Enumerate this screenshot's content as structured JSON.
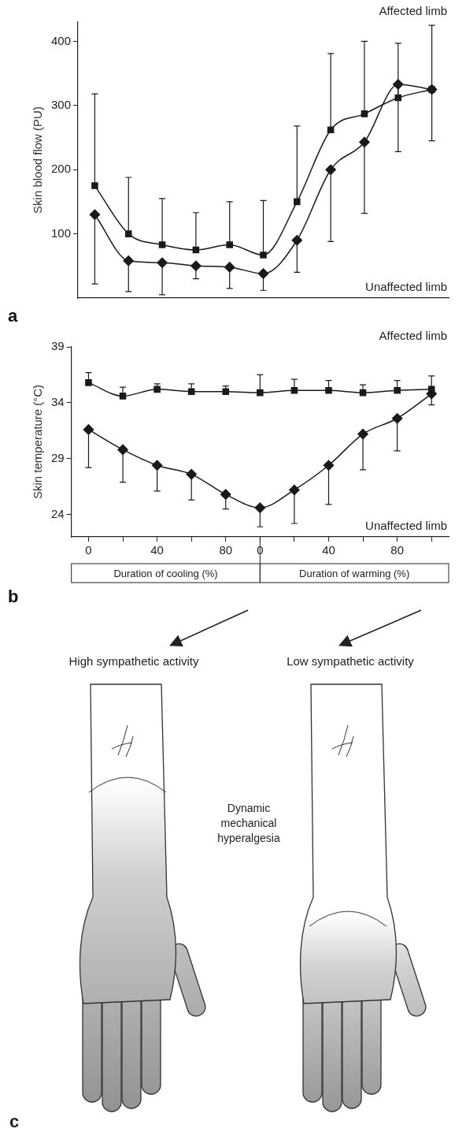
{
  "chart_data": [
    {
      "type": "line",
      "panel": "a",
      "ylabel": "Skin blood flow (PU)",
      "categories": [
        null,
        null,
        null,
        null,
        null,
        null,
        null,
        null,
        null,
        null,
        null
      ],
      "series": [
        {
          "name": "Affected limb",
          "color": "#1a1a1a",
          "marker": "square",
          "line_style": "solid",
          "values": [
            175,
            100,
            83,
            75,
            83,
            67,
            150,
            262,
            287,
            312,
            325
          ],
          "error_upper": [
            318,
            188,
            155,
            133,
            150,
            152,
            268,
            381,
            400,
            397,
            425
          ]
        },
        {
          "name": "Unaffected limb",
          "color": "#1a1a1a",
          "marker": "diamond",
          "line_style": "solid",
          "values": [
            130,
            58,
            55,
            50,
            48,
            38,
            90,
            200,
            243,
            333,
            325
          ],
          "error_lower": [
            22,
            10,
            5,
            30,
            15,
            12,
            40,
            88,
            132,
            228,
            245
          ]
        }
      ],
      "ylim": [
        0,
        430
      ],
      "yticks": [
        100,
        200,
        300,
        400
      ],
      "grid": false,
      "tick_labels": "y"
    },
    {
      "type": "line",
      "panel": "b",
      "ylabel": "Skin temperature (°C)",
      "xlabels": [
        "Duration of cooling (%)",
        "Duration of warming (%)"
      ],
      "categories": [
        "0",
        null,
        "40",
        null,
        "80",
        "0",
        null,
        "40",
        null,
        "80",
        null
      ],
      "series": [
        {
          "name": "Affected limb",
          "color": "#1a1a1a",
          "marker": "square",
          "line_style": "solid",
          "values": [
            35.8,
            34.6,
            35.2,
            35.0,
            35.0,
            34.9,
            35.1,
            35.1,
            34.9,
            35.1,
            35.2
          ],
          "error_upper": [
            36.7,
            35.4,
            35.7,
            35.7,
            35.5,
            36.5,
            36.1,
            36.0,
            35.6,
            36.0,
            36.4
          ]
        },
        {
          "name": "Unaffected limb",
          "color": "#1a1a1a",
          "marker": "diamond",
          "line_style": "solid",
          "values": [
            31.6,
            29.8,
            28.4,
            27.6,
            25.8,
            24.6,
            26.2,
            28.4,
            31.2,
            32.6,
            34.8
          ],
          "error_lower": [
            28.2,
            26.9,
            26.1,
            25.3,
            24.5,
            22.9,
            23.2,
            24.9,
            28.0,
            29.7,
            33.8
          ]
        }
      ],
      "ylim": [
        22,
        39
      ],
      "yticks": [
        24,
        29,
        34,
        39
      ],
      "grid": false
    }
  ],
  "diagram": {
    "panel": "c",
    "arrow_labels": [
      "High sympathetic activity",
      "Low sympathetic activity"
    ],
    "annotation": "Dynamic mechanical hyperalgesia"
  }
}
